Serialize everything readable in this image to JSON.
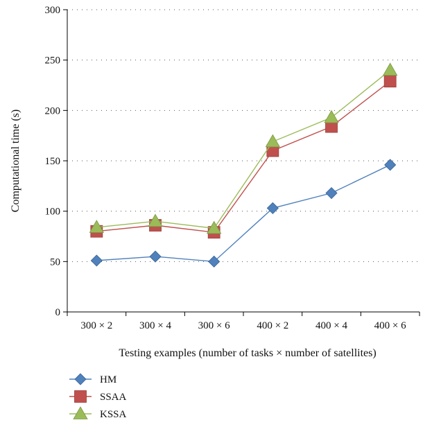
{
  "chart_data": {
    "type": "line",
    "categories": [
      "300 × 2",
      "300 × 4",
      "300 × 6",
      "400 × 2",
      "400 × 4",
      "400 × 6"
    ],
    "series": [
      {
        "name": "HM",
        "values": [
          51,
          55,
          50,
          103,
          118,
          146
        ],
        "color": "#4f81bd",
        "marker": "diamond"
      },
      {
        "name": "SSAA",
        "values": [
          80,
          86,
          79,
          160,
          184,
          229
        ],
        "color": "#c0504d",
        "marker": "square"
      },
      {
        "name": "KSSA",
        "values": [
          84,
          90,
          83,
          169,
          193,
          240
        ],
        "color": "#9bbb59",
        "marker": "triangle"
      }
    ],
    "xlabel": "Testing examples (number of tasks × number of satellites)",
    "ylabel": "Computational time (s)",
    "ylim": [
      0,
      300
    ],
    "yticks": [
      0,
      50,
      100,
      150,
      200,
      250,
      300
    ],
    "grid": "horizontal-dotted",
    "legend": "bottom-left"
  }
}
